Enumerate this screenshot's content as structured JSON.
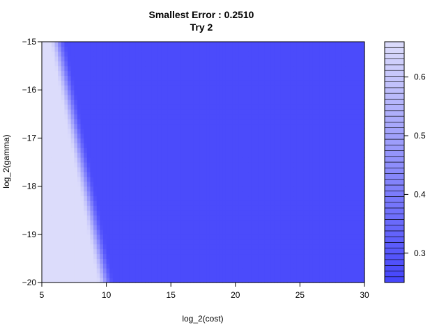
{
  "chart_data": {
    "type": "heatmap",
    "title": "Smallest Error : 0.2510",
    "subtitle": "Try 2",
    "xlabel": "log_2(cost)",
    "ylabel": "log_2(gamma)",
    "xlim": [
      5,
      30
    ],
    "ylim": [
      -20,
      -15
    ],
    "x_ticks": [
      5,
      10,
      15,
      20,
      25,
      30
    ],
    "y_ticks": [
      -15,
      -16,
      -17,
      -18,
      -19,
      -20
    ],
    "colorbar": {
      "ticks": [
        0.3,
        0.4,
        0.5,
        0.6
      ],
      "range": [
        0.25,
        0.66
      ],
      "levels": 42
    },
    "colors": {
      "low": "#4444fb",
      "high": "#dcdcfb"
    },
    "surface": {
      "boundary_at_top": {
        "x": 5.6,
        "y": -15
      },
      "boundary_at_bottom": {
        "x": 9.3,
        "y": -20
      },
      "transition_width": 1.3,
      "value_low_region": 0.66,
      "value_high_region": 0.27
    }
  }
}
